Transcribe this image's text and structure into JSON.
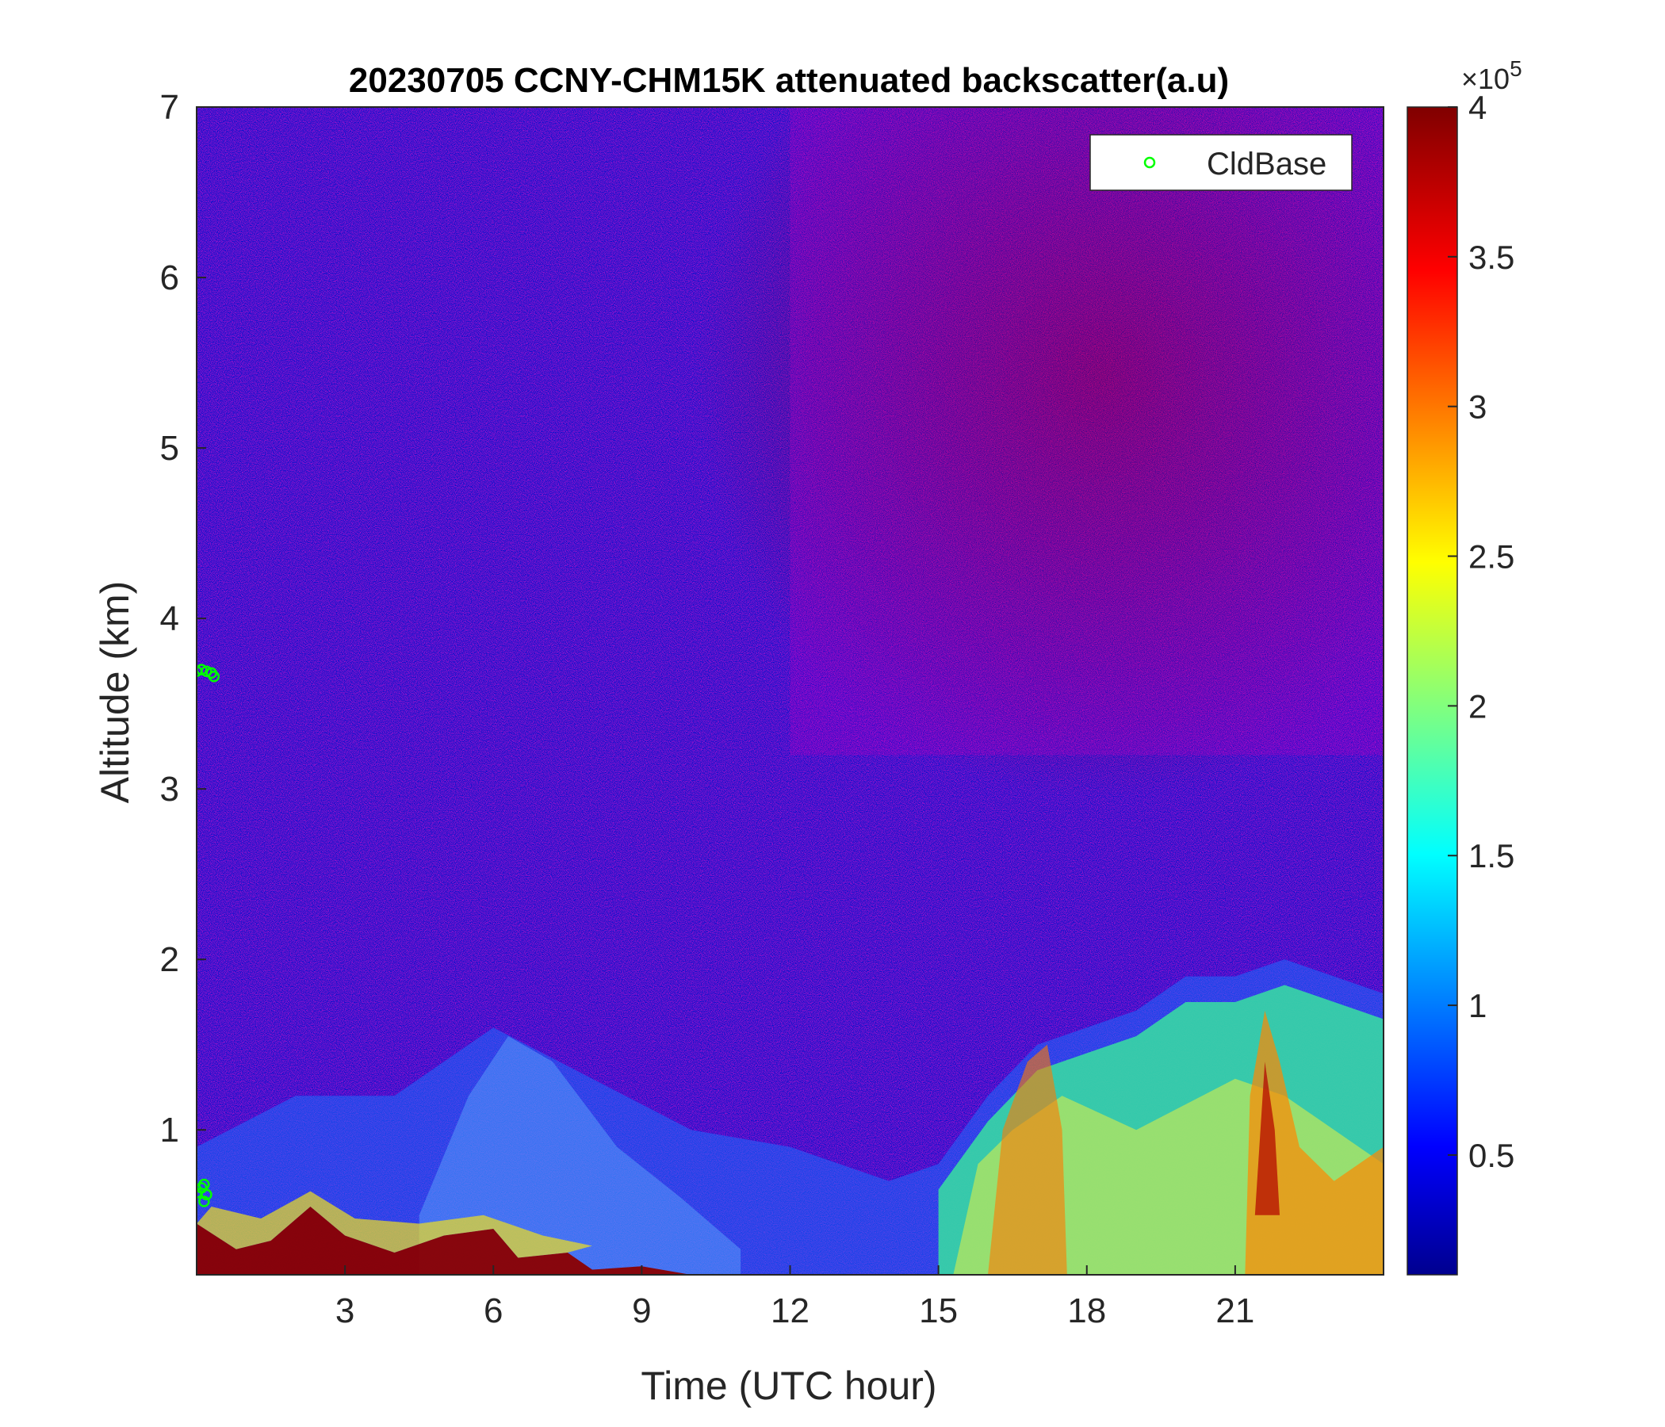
{
  "chart_data": {
    "type": "heatmap",
    "title": "20230705 CCNY-CHM15K attenuated backscatter(a.u)",
    "xlabel": "Time (UTC hour)",
    "ylabel": "Altitude (km)",
    "xlim": [
      0,
      24
    ],
    "ylim": [
      0.15,
      7
    ],
    "xticks": [
      "3",
      "6",
      "9",
      "12",
      "15",
      "18",
      "21"
    ],
    "xtick_values": [
      3,
      6,
      9,
      12,
      15,
      18,
      21
    ],
    "yticks": [
      "1",
      "2",
      "3",
      "4",
      "5",
      "6",
      "7"
    ],
    "ytick_values": [
      1,
      2,
      3,
      4,
      5,
      6,
      7
    ],
    "colormap": "jet",
    "colorbar": {
      "range": [
        0.1,
        4
      ],
      "ticks": [
        "0.5",
        "1",
        "1.5",
        "2",
        "2.5",
        "3",
        "3.5",
        "4"
      ],
      "tick_values": [
        0.5,
        1,
        1.5,
        2,
        2.5,
        3,
        3.5,
        4
      ],
      "exponent_label": "×10",
      "exponent_power": "5"
    },
    "legend": {
      "placement": "top-right",
      "entries": [
        "CldBase"
      ],
      "marker_color": "#00ff00"
    },
    "series": [
      {
        "name": "CldBase",
        "marker": "circle",
        "color": "#00ff00",
        "points": [
          {
            "x": 0.0,
            "y": 3.69
          },
          {
            "x": 0.1,
            "y": 3.7
          },
          {
            "x": 0.2,
            "y": 3.69
          },
          {
            "x": 0.3,
            "y": 3.68
          },
          {
            "x": 0.35,
            "y": 3.66
          },
          {
            "x": 0.0,
            "y": 0.63
          },
          {
            "x": 0.1,
            "y": 0.66
          },
          {
            "x": 0.15,
            "y": 0.68
          },
          {
            "x": 0.2,
            "y": 0.62
          },
          {
            "x": 0.15,
            "y": 0.58
          }
        ]
      }
    ],
    "features": {
      "near_surface_high_backscatter_hours": [
        0,
        10
      ],
      "aerosol_layer_top_km": [
        [
          0,
          0.9
        ],
        [
          2,
          1.2
        ],
        [
          4,
          1.2
        ],
        [
          6,
          1.6
        ],
        [
          8,
          1.3
        ],
        [
          10,
          1.0
        ],
        [
          12,
          0.9
        ],
        [
          14,
          0.7
        ],
        [
          15,
          0.8
        ],
        [
          16,
          1.2
        ],
        [
          17,
          1.5
        ],
        [
          19,
          1.7
        ],
        [
          20,
          1.9
        ],
        [
          21,
          1.9
        ],
        [
          22,
          2.0
        ],
        [
          24,
          1.8
        ]
      ],
      "high_noise_region": "upper-right, hours 13-24, altitude 3-7 km"
    }
  }
}
